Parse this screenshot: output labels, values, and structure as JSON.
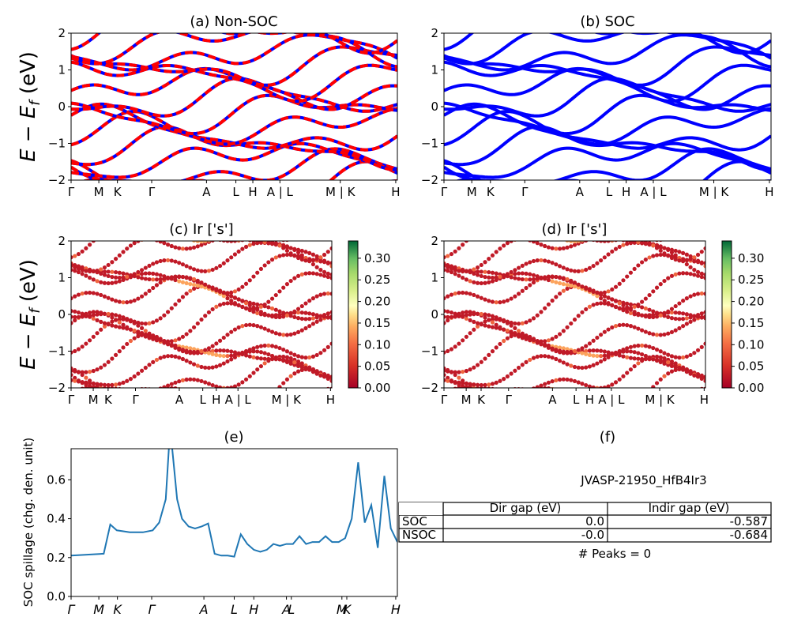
{
  "figure": {
    "panels": [
      {
        "id": "a",
        "title": "(a) Non-SOC"
      },
      {
        "id": "b",
        "title": "(b) SOC"
      },
      {
        "id": "c",
        "title": "(c)  Ir ['s']"
      },
      {
        "id": "d",
        "title": "(d) Ir ['s']"
      },
      {
        "id": "e",
        "title": "(e)"
      },
      {
        "id": "f",
        "title": "(f)"
      }
    ],
    "energy_ylabel": "E − E",
    "energy_ylabel_sub": "f",
    "energy_ylabel_unit": " (eV)",
    "spillage_ylabel": "SOC spillage (chg. den. unit)"
  },
  "chart_data": [
    {
      "panel": "a",
      "type": "line",
      "title": "(a) Non-SOC",
      "ylim": [
        -2,
        2
      ],
      "yticks": [
        "2",
        "1",
        "0",
        "−1",
        "−2"
      ],
      "xticks": [
        "Γ",
        "M",
        "K",
        "Γ",
        "A",
        "L",
        "H",
        "A | L",
        "M | K",
        "H"
      ],
      "series_colors": [
        "#ff0000",
        "#0000ff"
      ],
      "style": "red/blue dashed overlaid bands"
    },
    {
      "panel": "b",
      "type": "line",
      "title": "(b) SOC",
      "ylim": [
        -2,
        2
      ],
      "yticks": [
        "2",
        "1",
        "0",
        "−1",
        "−2"
      ],
      "xticks": [
        "Γ",
        "M",
        "K",
        "Γ",
        "A",
        "L",
        "H",
        "A | L",
        "M | K",
        "H"
      ],
      "series_colors": [
        "#0000ff"
      ]
    },
    {
      "panel": "c",
      "type": "scatter",
      "title": "(c)  Ir ['s']",
      "ylim": [
        -2,
        2
      ],
      "yticks": [
        "2",
        "1",
        "0",
        "−1",
        "−2"
      ],
      "xticks": [
        "Γ",
        "M",
        "K",
        "Γ",
        "A",
        "L",
        "H",
        "A | L",
        "M | K",
        "H"
      ],
      "colorbar": {
        "ticks": [
          "0.30",
          "0.25",
          "0.20",
          "0.15",
          "0.10",
          "0.05",
          "0.00"
        ],
        "range": [
          0,
          0.34
        ],
        "colormap": "RdYlGn"
      }
    },
    {
      "panel": "d",
      "type": "scatter",
      "title": "(d) Ir ['s']",
      "ylim": [
        -2,
        2
      ],
      "yticks": [
        "2",
        "1",
        "0",
        "−1",
        "−2"
      ],
      "xticks": [
        "Γ",
        "M",
        "K",
        "Γ",
        "A",
        "L",
        "H",
        "A | L",
        "M | K",
        "H"
      ],
      "colorbar": {
        "ticks": [
          "0.30",
          "0.25",
          "0.20",
          "0.15",
          "0.10",
          "0.05",
          "0.00"
        ],
        "range": [
          0,
          0.34
        ],
        "colormap": "RdYlGn"
      }
    },
    {
      "panel": "e",
      "type": "line",
      "title": "(e)",
      "ylabel": "SOC spillage (chg. den. unit)",
      "ylim": [
        0,
        0.76
      ],
      "yticks": [
        "0.6",
        "0.4",
        "0.2",
        "0.0"
      ],
      "xticks": [
        "Γ",
        "M",
        "K",
        "Γ",
        "A",
        "L",
        "H",
        "A",
        "L",
        "M",
        "K",
        "H"
      ],
      "series": [
        {
          "color": "#1f77b4",
          "x": [
            0.0,
            0.1,
            0.12,
            0.14,
            0.18,
            0.22,
            0.25,
            0.27,
            0.29,
            0.3,
            0.31,
            0.325,
            0.34,
            0.36,
            0.38,
            0.4,
            0.42,
            0.44,
            0.46,
            0.48,
            0.5,
            0.52,
            0.54,
            0.56,
            0.58,
            0.6,
            0.62,
            0.64,
            0.66,
            0.68,
            0.7,
            0.72,
            0.74,
            0.76,
            0.78,
            0.8,
            0.82,
            0.84,
            0.86,
            0.88,
            0.9,
            0.92,
            0.94,
            0.96,
            0.98,
            1.0
          ],
          "values": [
            0.21,
            0.22,
            0.37,
            0.34,
            0.33,
            0.33,
            0.34,
            0.38,
            0.5,
            0.77,
            0.76,
            0.5,
            0.4,
            0.36,
            0.35,
            0.36,
            0.375,
            0.22,
            0.21,
            0.21,
            0.205,
            0.32,
            0.27,
            0.24,
            0.23,
            0.24,
            0.27,
            0.26,
            0.27,
            0.27,
            0.31,
            0.27,
            0.28,
            0.28,
            0.31,
            0.28,
            0.28,
            0.3,
            0.4,
            0.69,
            0.38,
            0.47,
            0.25,
            0.62,
            0.35,
            0.28
          ]
        }
      ]
    }
  ],
  "info": {
    "material": "JVASP-21950_HfB4Ir3",
    "table": {
      "headers": [
        "",
        "Dir gap (eV)",
        "Indir gap (eV)"
      ],
      "rows": [
        {
          "label": "SOC",
          "dir": "0.0",
          "indir": "-0.587"
        },
        {
          "label": "NSOC",
          "dir": "-0.0",
          "indir": "-0.684"
        }
      ]
    },
    "peaks": "# Peaks = 0"
  }
}
